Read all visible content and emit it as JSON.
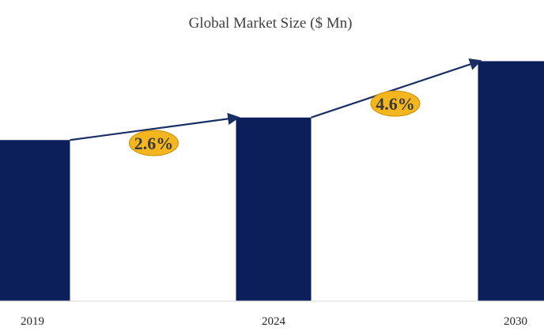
{
  "chart_data": {
    "type": "bar",
    "title": "Global Market Size ($ Mn)",
    "categories": [
      "2019",
      "2024",
      "2030"
    ],
    "values": [
      100,
      114,
      149
    ],
    "ylim": [
      0,
      160
    ],
    "xlabel": "",
    "ylabel": "",
    "grid": false,
    "legend": "none",
    "annotations": [
      {
        "label": "2.6%",
        "from": "2019",
        "to": "2024"
      },
      {
        "label": "4.6%",
        "from": "2024",
        "to": "2030"
      }
    ],
    "colors": {
      "bar": "#0c1f5b",
      "arrow": "#1a2e66",
      "badge": "#f3b61f",
      "badge_border": "#c98f00",
      "axis": "#d9d9d9"
    }
  }
}
